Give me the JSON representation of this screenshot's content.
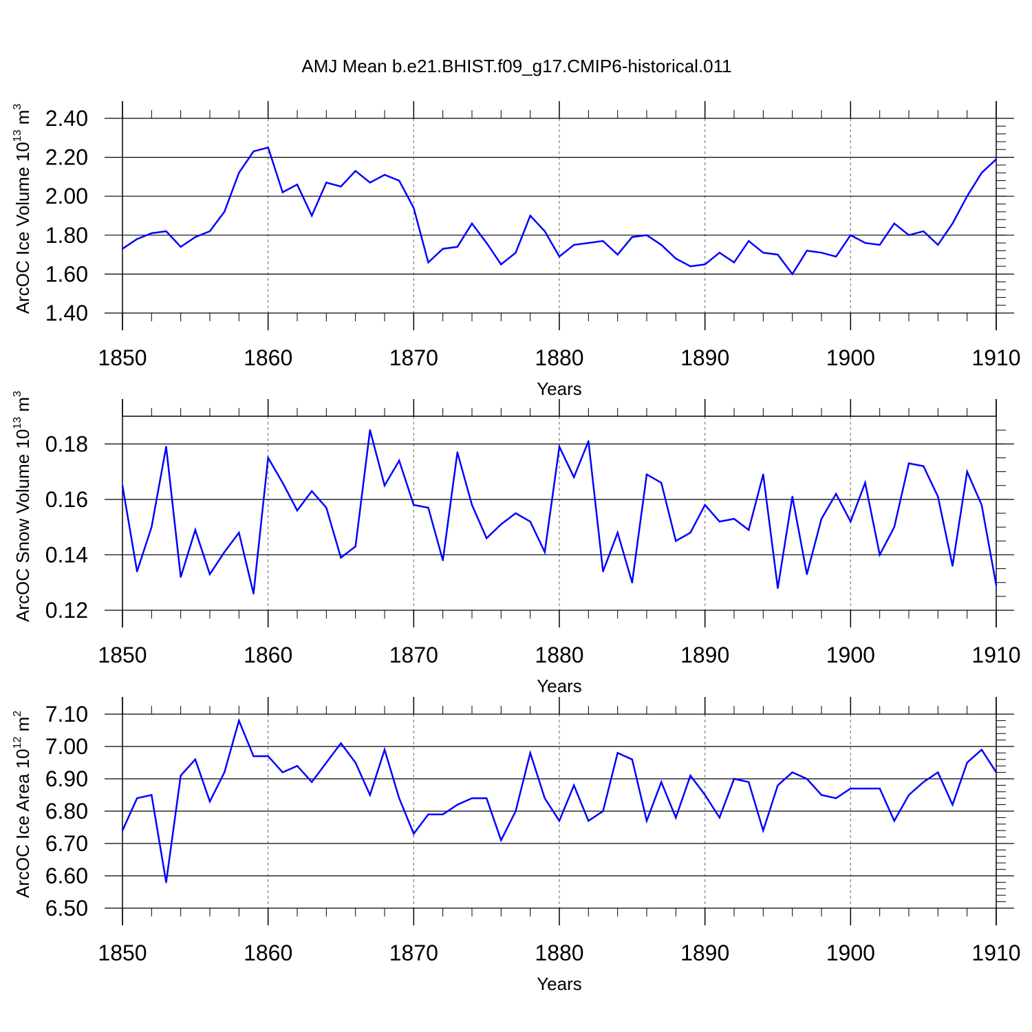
{
  "title": "AMJ Mean b.e21.BHIST.f09_g17.CMIP6-historical.011",
  "colors": {
    "line": "#0000ff",
    "axis": "#000000",
    "grid": "#808080"
  },
  "chart_data": [
    {
      "type": "line",
      "name": "ice-volume",
      "ylabel": {
        "text": "ArcOC Ice Volume 10",
        "exp": "13",
        "unit": " m",
        "unit_exp": "3"
      },
      "xlabel": "Years",
      "xlim": [
        1850,
        1910
      ],
      "ylim": [
        1.4,
        2.4
      ],
      "xticks": [
        1850,
        1860,
        1870,
        1880,
        1890,
        1900,
        1910
      ],
      "xtick_labels": [
        "1850",
        "1860",
        "1870",
        "1880",
        "1890",
        "1900",
        "1910"
      ],
      "yticks": [
        1.4,
        1.6,
        1.8,
        2.0,
        2.2,
        2.4
      ],
      "ytick_labels": [
        "1.40",
        "1.60",
        "1.80",
        "2.00",
        "2.20",
        "2.40"
      ],
      "y_minor_step": 0.04,
      "x_start": 1850,
      "values": [
        1.73,
        1.78,
        1.81,
        1.82,
        1.74,
        1.79,
        1.82,
        1.92,
        2.12,
        2.23,
        2.25,
        2.02,
        2.06,
        1.9,
        2.07,
        2.05,
        2.13,
        2.07,
        2.11,
        2.08,
        1.94,
        1.66,
        1.73,
        1.74,
        1.86,
        1.76,
        1.65,
        1.71,
        1.9,
        1.82,
        1.69,
        1.75,
        1.76,
        1.77,
        1.7,
        1.79,
        1.8,
        1.75,
        1.68,
        1.64,
        1.65,
        1.71,
        1.66,
        1.77,
        1.71,
        1.7,
        1.6,
        1.72,
        1.71,
        1.69,
        1.8,
        1.76,
        1.75,
        1.86,
        1.8,
        1.82,
        1.75,
        1.86,
        2.0,
        2.12,
        2.19
      ]
    },
    {
      "type": "line",
      "name": "snow-volume",
      "ylabel": {
        "text": "ArcOC Snow Volume 10",
        "exp": "13",
        "unit": " m",
        "unit_exp": "3"
      },
      "xlabel": "Years",
      "xlim": [
        1850,
        1910
      ],
      "ylim": [
        0.12,
        0.19
      ],
      "xticks": [
        1850,
        1860,
        1870,
        1880,
        1890,
        1900,
        1910
      ],
      "xtick_labels": [
        "1850",
        "1860",
        "1870",
        "1880",
        "1890",
        "1900",
        "1910"
      ],
      "yticks": [
        0.12,
        0.14,
        0.16,
        0.18
      ],
      "ytick_labels": [
        "0.12",
        "0.14",
        "0.16",
        "0.18"
      ],
      "y_minor_step": 0.005,
      "x_start": 1850,
      "values": [
        0.165,
        0.134,
        0.15,
        0.179,
        0.132,
        0.149,
        0.133,
        0.141,
        0.148,
        0.126,
        0.175,
        0.166,
        0.156,
        0.163,
        0.157,
        0.139,
        0.143,
        0.185,
        0.165,
        0.174,
        0.158,
        0.157,
        0.138,
        0.177,
        0.158,
        0.146,
        0.151,
        0.155,
        0.152,
        0.141,
        0.179,
        0.168,
        0.181,
        0.134,
        0.148,
        0.13,
        0.169,
        0.166,
        0.145,
        0.148,
        0.158,
        0.152,
        0.153,
        0.149,
        0.169,
        0.128,
        0.161,
        0.133,
        0.153,
        0.162,
        0.152,
        0.166,
        0.14,
        0.15,
        0.173,
        0.172,
        0.161,
        0.136,
        0.17,
        0.158,
        0.129
      ]
    },
    {
      "type": "line",
      "name": "ice-area",
      "ylabel": {
        "text": "ArcOC Ice Area 10",
        "exp": "12",
        "unit": " m",
        "unit_exp": "2"
      },
      "xlabel": "Years",
      "xlim": [
        1850,
        1910
      ],
      "ylim": [
        6.5,
        7.1
      ],
      "xticks": [
        1850,
        1860,
        1870,
        1880,
        1890,
        1900,
        1910
      ],
      "xtick_labels": [
        "1850",
        "1860",
        "1870",
        "1880",
        "1890",
        "1900",
        "1910"
      ],
      "yticks": [
        6.5,
        6.6,
        6.7,
        6.8,
        6.9,
        7.0,
        7.1
      ],
      "ytick_labels": [
        "6.50",
        "6.60",
        "6.70",
        "6.80",
        "6.90",
        "7.00",
        "7.10"
      ],
      "y_minor_step": 0.02,
      "x_start": 1850,
      "values": [
        6.74,
        6.84,
        6.85,
        6.58,
        6.91,
        6.96,
        6.83,
        6.92,
        7.08,
        6.97,
        6.97,
        6.92,
        6.94,
        6.89,
        6.95,
        7.01,
        6.95,
        6.85,
        6.99,
        6.84,
        6.73,
        6.79,
        6.79,
        6.82,
        6.84,
        6.84,
        6.71,
        6.8,
        6.98,
        6.84,
        6.77,
        6.88,
        6.77,
        6.8,
        6.98,
        6.96,
        6.77,
        6.89,
        6.78,
        6.91,
        6.85,
        6.78,
        6.9,
        6.89,
        6.74,
        6.88,
        6.92,
        6.9,
        6.85,
        6.84,
        6.87,
        6.87,
        6.87,
        6.77,
        6.85,
        6.89,
        6.92,
        6.82,
        6.95,
        6.99,
        6.92
      ]
    }
  ]
}
